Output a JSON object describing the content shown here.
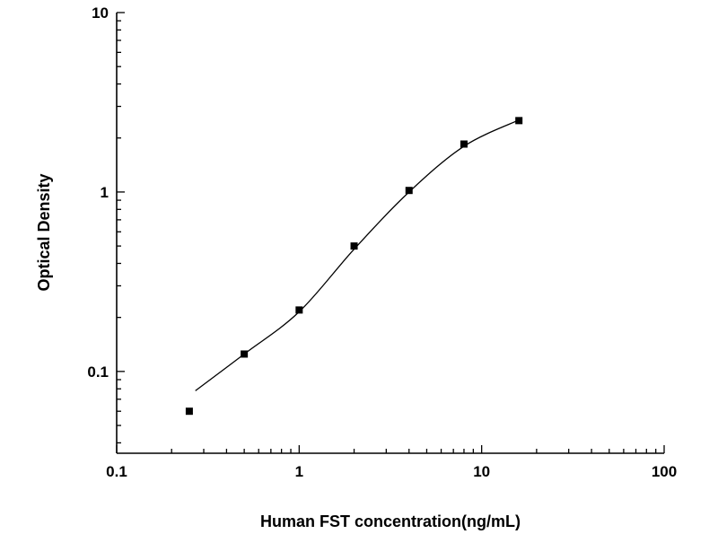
{
  "chart_data": {
    "type": "scatter",
    "title": "",
    "xlabel": "Human FST concentration(ng/mL)",
    "ylabel": "Optical Density",
    "x_scale": "log",
    "y_scale": "log",
    "xlim": [
      0.1,
      100
    ],
    "ylim": [
      0.035,
      10
    ],
    "x_ticks": [
      0.1,
      1,
      10,
      100
    ],
    "x_tick_labels": [
      "0.1",
      "1",
      "10",
      "100"
    ],
    "y_ticks": [
      0.1,
      1,
      10
    ],
    "y_tick_labels": [
      "0.1",
      "1",
      "10"
    ],
    "grid": false,
    "legend": null,
    "line_color": "#000000",
    "marker": {
      "shape": "square",
      "color": "#000000",
      "size": 8
    },
    "points": [
      {
        "x": 0.25,
        "y": 0.06
      },
      {
        "x": 0.5,
        "y": 0.125
      },
      {
        "x": 1,
        "y": 0.22
      },
      {
        "x": 2,
        "y": 0.5
      },
      {
        "x": 4,
        "y": 1.02
      },
      {
        "x": 8,
        "y": 1.85
      },
      {
        "x": 16,
        "y": 2.5
      }
    ],
    "fit_curve": [
      {
        "x": 0.27,
        "y": 0.078
      },
      {
        "x": 0.5,
        "y": 0.125
      },
      {
        "x": 1,
        "y": 0.215
      },
      {
        "x": 2,
        "y": 0.48
      },
      {
        "x": 4,
        "y": 1.0
      },
      {
        "x": 8,
        "y": 1.8
      },
      {
        "x": 16,
        "y": 2.52
      }
    ]
  }
}
